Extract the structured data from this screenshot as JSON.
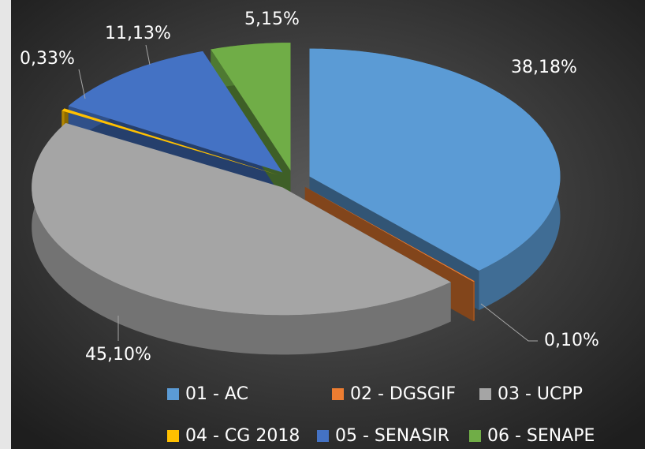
{
  "chart_data": {
    "type": "pie",
    "categories": [
      "01 - AC",
      "02 - DGSGIF",
      "03 - UCPP",
      "04 - CG 2018",
      "05 - SENASIR",
      "06 - SENAPE"
    ],
    "values": [
      38.18,
      0.1,
      45.1,
      0.33,
      11.13,
      5.15
    ],
    "value_labels": [
      "38,18%",
      "0,10%",
      "45,10%",
      "0,33%",
      "11,13%",
      "5,15%"
    ],
    "colors": [
      "#5b9bd5",
      "#ed7d31",
      "#a5a5a5",
      "#ffc000",
      "#4472c4",
      "#70ad47"
    ],
    "legend": "bottom"
  }
}
